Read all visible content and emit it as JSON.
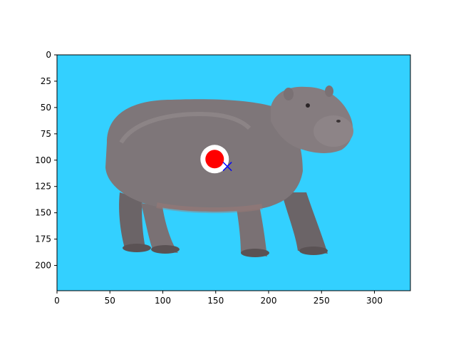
{
  "chart_data": {
    "type": "image",
    "title": "",
    "xlabel": "",
    "ylabel": "",
    "xlim": [
      0,
      334
    ],
    "ylim": [
      224,
      0
    ],
    "x_ticks": [
      0,
      50,
      100,
      150,
      200,
      250,
      300
    ],
    "y_ticks": [
      0,
      25,
      50,
      75,
      100,
      125,
      150,
      175,
      200
    ],
    "image_subject": "hippopotamus",
    "background_color": "#33d0ff",
    "annotations": [
      {
        "kind": "target-marker",
        "x": 149,
        "y": 99,
        "color": "#ff0000",
        "ring_color": "#ffffff"
      },
      {
        "kind": "cross-marker",
        "x": 161,
        "y": 106,
        "color": "#0000ff"
      }
    ]
  }
}
